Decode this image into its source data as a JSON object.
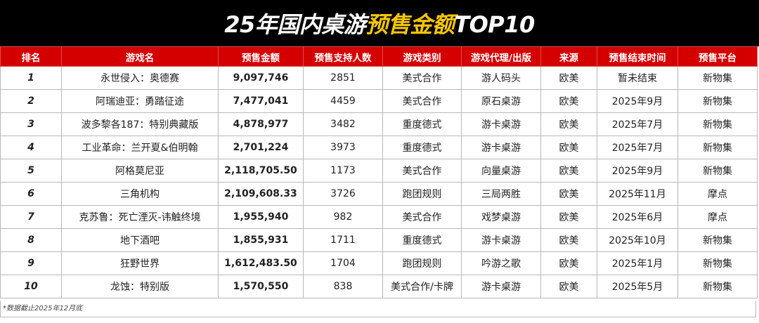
{
  "title": {
    "part1": "25年国内桌游",
    "part2": "预售金额",
    "part3": "TOP10"
  },
  "table": {
    "headers": [
      "排名",
      "游戏名",
      "预售金额",
      "预售支持人数",
      "游戏类别",
      "游戏代理/出版",
      "来源",
      "预售结束时间",
      "预售平台"
    ],
    "rows": [
      [
        "1",
        "永世侵入：奥德赛",
        "9,097,746",
        "2851",
        "美式合作",
        "游人码头",
        "欧美",
        "暂未结束",
        "新物集"
      ],
      [
        "2",
        "阿瑞迪亚：勇踏征途",
        "7,477,041",
        "4459",
        "美式合作",
        "原石桌游",
        "欧美",
        "2025年9月",
        "新物集"
      ],
      [
        "3",
        "波多黎各187：特别典藏版",
        "4,878,977",
        "3482",
        "重度德式",
        "游卡桌游",
        "欧美",
        "2025年7月",
        "新物集"
      ],
      [
        "4",
        "工业革命：兰开夏&伯明翰",
        "2,701,224",
        "3973",
        "重度德式",
        "游卡桌游",
        "欧美",
        "2025年7月",
        "新物集"
      ],
      [
        "5",
        "阿格莫尼亚",
        "2,118,705.50",
        "1173",
        "美式合作",
        "向量桌游",
        "欧美",
        "2025年9月",
        "新物集"
      ],
      [
        "6",
        "三角机构",
        "2,109,608.33",
        "3726",
        "跑团规则",
        "三局两胜",
        "欧美",
        "2025年11月",
        "摩点"
      ],
      [
        "7",
        "克苏鲁：死亡湮灭-讳触终境",
        "1,955,940",
        "982",
        "美式合作",
        "戏梦桌游",
        "欧美",
        "2025年6月",
        "摩点"
      ],
      [
        "8",
        "地下酒吧",
        "1,855,931",
        "1711",
        "重度德式",
        "游卡桌游",
        "欧美",
        "2025年10月",
        "新物集"
      ],
      [
        "9",
        "狂野世界",
        "1,612,483.50",
        "1704",
        "跑团规则",
        "吟游之歌",
        "欧美",
        "2025年1月",
        "新物集"
      ],
      [
        "10",
        "龙蚀：特别版",
        "1,570,550",
        "838",
        "美式合作/卡牌",
        "游卡桌游",
        "欧美",
        "2025年5月",
        "新物集"
      ]
    ]
  },
  "note": "*数据截止2025年12月底",
  "colors": {
    "title_bg": "#000000",
    "title_white": "#ffffff",
    "title_yellow": "#f7c600",
    "header_bg": "#d40000",
    "header_text": "#ffffff"
  }
}
